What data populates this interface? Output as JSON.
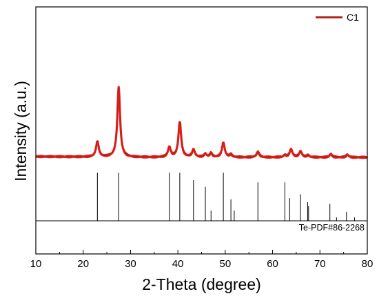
{
  "chart_data": {
    "type": "line",
    "xlabel": "2-Theta (degree)",
    "ylabel": "Intensity (a.u.)",
    "xlim": [
      10,
      80
    ],
    "xticks": [
      10,
      20,
      30,
      40,
      50,
      60,
      70,
      80
    ],
    "y_ticks_shown": false,
    "grid": false,
    "legend_position": "top-right",
    "series": [
      {
        "name": "C1",
        "color": "#e8201c",
        "legend_color": "#b22218",
        "baseline": 1.0,
        "x_range": [
          10,
          80
        ],
        "peaks": [
          {
            "x": 23.0,
            "h": 2.3,
            "w": 0.35
          },
          {
            "x": 27.5,
            "h": 10.5,
            "w": 0.35
          },
          {
            "x": 38.2,
            "h": 1.5,
            "w": 0.35
          },
          {
            "x": 40.4,
            "h": 5.3,
            "w": 0.35
          },
          {
            "x": 43.3,
            "h": 1.1,
            "w": 0.35
          },
          {
            "x": 45.8,
            "h": 0.5,
            "w": 0.3
          },
          {
            "x": 47.0,
            "h": 0.6,
            "w": 0.3
          },
          {
            "x": 49.6,
            "h": 2.2,
            "w": 0.35
          },
          {
            "x": 51.2,
            "h": 0.4,
            "w": 0.3
          },
          {
            "x": 56.9,
            "h": 0.8,
            "w": 0.35
          },
          {
            "x": 62.6,
            "h": 0.3,
            "w": 0.3
          },
          {
            "x": 63.9,
            "h": 1.2,
            "w": 0.35
          },
          {
            "x": 65.9,
            "h": 0.9,
            "w": 0.35
          },
          {
            "x": 67.5,
            "h": 0.3,
            "w": 0.3
          },
          {
            "x": 72.3,
            "h": 0.5,
            "w": 0.3
          },
          {
            "x": 75.8,
            "h": 0.4,
            "w": 0.3
          }
        ]
      }
    ],
    "reference": {
      "label": "Te-PDF#86-2268",
      "lines": [
        {
          "x": 23.0,
          "h": 0.85
        },
        {
          "x": 27.5,
          "h": 0.85
        },
        {
          "x": 38.2,
          "h": 0.85
        },
        {
          "x": 40.4,
          "h": 0.85
        },
        {
          "x": 43.3,
          "h": 0.72
        },
        {
          "x": 45.8,
          "h": 0.6
        },
        {
          "x": 47.0,
          "h": 0.18
        },
        {
          "x": 49.6,
          "h": 0.85
        },
        {
          "x": 51.2,
          "h": 0.38
        },
        {
          "x": 51.9,
          "h": 0.18
        },
        {
          "x": 56.9,
          "h": 0.68
        },
        {
          "x": 62.6,
          "h": 0.68
        },
        {
          "x": 63.6,
          "h": 0.4
        },
        {
          "x": 65.9,
          "h": 0.47
        },
        {
          "x": 67.4,
          "h": 0.33
        },
        {
          "x": 67.6,
          "h": 0.26
        },
        {
          "x": 72.1,
          "h": 0.3
        },
        {
          "x": 73.5,
          "h": 0.06
        },
        {
          "x": 75.6,
          "h": 0.16
        },
        {
          "x": 77.3,
          "h": 0.06
        }
      ]
    }
  }
}
